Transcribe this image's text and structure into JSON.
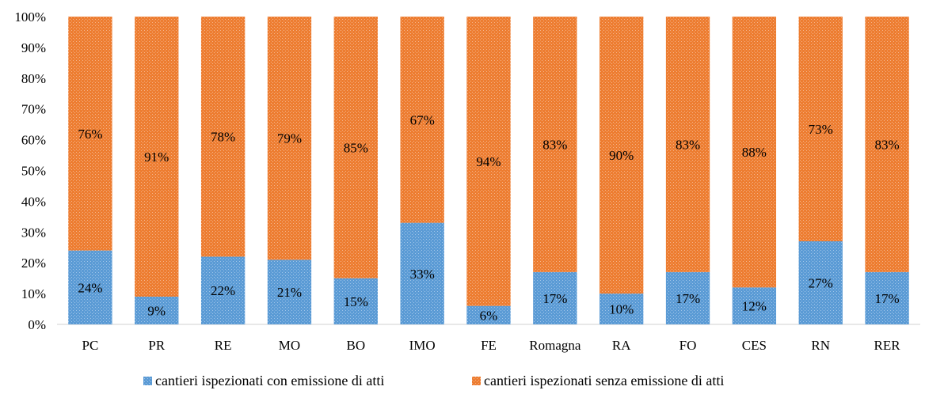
{
  "chart_data": {
    "type": "bar",
    "stacked": true,
    "percent": true,
    "categories": [
      "PC",
      "PR",
      "RE",
      "MO",
      "BO",
      "IMO",
      "FE",
      "Romagna",
      "RA",
      "FO",
      "CES",
      "RN",
      "RER"
    ],
    "series": [
      {
        "name": "cantieri ispezionati con emissione di atti",
        "color": "#5b9bd5",
        "values": [
          24,
          9,
          22,
          21,
          15,
          33,
          6,
          17,
          10,
          17,
          12,
          27,
          17
        ],
        "labels": [
          "24%",
          "9%",
          "22%",
          "21%",
          "15%",
          "33%",
          "6%",
          "17%",
          "10%",
          "17%",
          "12%",
          "27%",
          "17%"
        ]
      },
      {
        "name": "cantieri ispezionati senza emissione di atti",
        "color": "#ed7d31",
        "values": [
          76,
          91,
          78,
          79,
          85,
          67,
          94,
          83,
          90,
          83,
          88,
          73,
          83
        ],
        "labels": [
          "76%",
          "91%",
          "78%",
          "79%",
          "85%",
          "67%",
          "94%",
          "83%",
          "90%",
          "83%",
          "88%",
          "73%",
          "83%"
        ]
      }
    ],
    "yticks": [
      "0%",
      "10%",
      "20%",
      "30%",
      "40%",
      "50%",
      "60%",
      "70%",
      "80%",
      "90%",
      "100%"
    ],
    "ylim": [
      0,
      100
    ],
    "grid": false,
    "legend_position": "bottom"
  }
}
